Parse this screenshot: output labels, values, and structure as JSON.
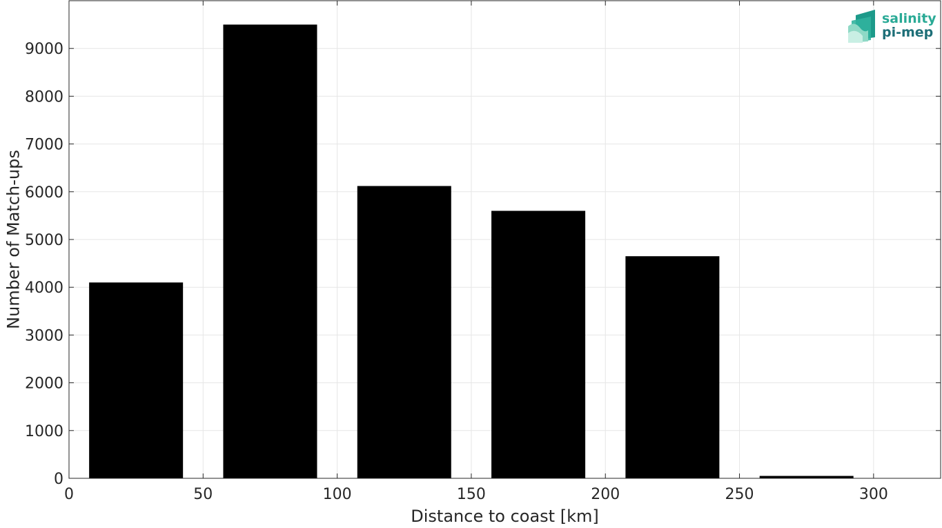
{
  "chart_data": {
    "type": "bar",
    "xlabel": "Distance to coast [km]",
    "ylabel": "Number of Match-ups",
    "xlim": [
      0,
      325
    ],
    "ylim": [
      0,
      10000
    ],
    "xticks": [
      0,
      50,
      100,
      150,
      200,
      250,
      300
    ],
    "yticks": [
      0,
      1000,
      2000,
      3000,
      4000,
      5000,
      6000,
      7000,
      8000,
      9000
    ],
    "grid": true,
    "bar_color": "#000000",
    "bins": [
      {
        "x_start": 0,
        "x_end": 50,
        "value": 4100
      },
      {
        "x_start": 50,
        "x_end": 100,
        "value": 9500
      },
      {
        "x_start": 100,
        "x_end": 150,
        "value": 6120
      },
      {
        "x_start": 150,
        "x_end": 200,
        "value": 5600
      },
      {
        "x_start": 200,
        "x_end": 250,
        "value": 4650
      },
      {
        "x_start": 250,
        "x_end": 300,
        "value": 50
      }
    ]
  },
  "logo": {
    "line1": "salinity",
    "line2": "pi-mep",
    "color1": "#2aaa96",
    "color2": "#1e6f78"
  }
}
